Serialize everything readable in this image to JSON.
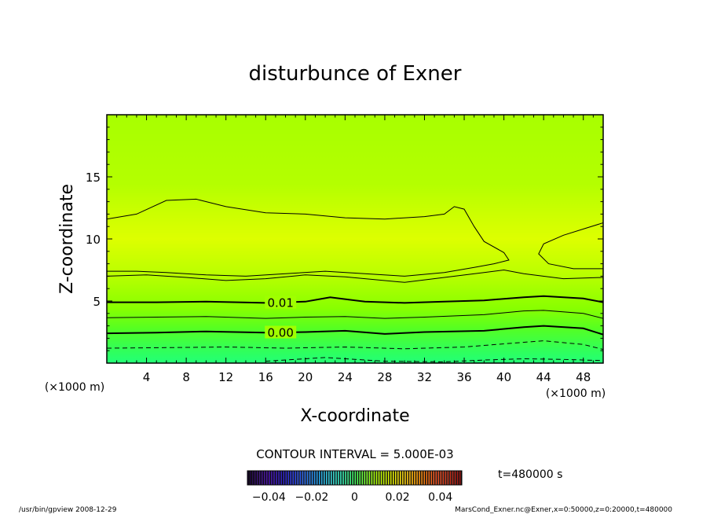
{
  "chart_data": {
    "type": "contour",
    "title": "disturbunce of Exner",
    "xlabel": "X-coordinate",
    "ylabel": "Z-coordinate",
    "x_unit": "(×1000 m)",
    "x_unit_right": "(×1000 m)",
    "y_unit": "(×1000 m)",
    "xlim": [
      0,
      50
    ],
    "ylim": [
      0,
      20
    ],
    "x_ticks": [
      4,
      8,
      12,
      16,
      20,
      24,
      28,
      32,
      36,
      40,
      44,
      48
    ],
    "y_ticks": [
      5,
      10,
      15
    ],
    "contour_interval_text": "CONTOUR INTERVAL = 5.000E-03",
    "contour_labels": [
      {
        "text": "0.01",
        "level": 0.01,
        "x": 17.5,
        "z": 4.9
      },
      {
        "text": "0.00",
        "level": 0.0,
        "x": 17.5,
        "z": 2.5
      }
    ],
    "contours": [
      {
        "level": 0.01,
        "style": "bold",
        "points": [
          [
            0,
            4.9
          ],
          [
            5,
            4.9
          ],
          [
            10,
            4.95
          ],
          [
            16,
            4.85
          ],
          [
            20,
            4.95
          ],
          [
            22.5,
            5.3
          ],
          [
            26,
            4.95
          ],
          [
            30,
            4.85
          ],
          [
            34,
            4.95
          ],
          [
            38,
            5.05
          ],
          [
            42,
            5.3
          ],
          [
            44,
            5.4
          ],
          [
            48,
            5.2
          ],
          [
            50,
            4.9
          ]
        ]
      },
      {
        "level": 0.0,
        "style": "bold",
        "points": [
          [
            0,
            2.4
          ],
          [
            5,
            2.45
          ],
          [
            10,
            2.55
          ],
          [
            16,
            2.45
          ],
          [
            20,
            2.5
          ],
          [
            24,
            2.6
          ],
          [
            28,
            2.35
          ],
          [
            32,
            2.5
          ],
          [
            38,
            2.6
          ],
          [
            42,
            2.9
          ],
          [
            44,
            3.0
          ],
          [
            48,
            2.8
          ],
          [
            50,
            2.3
          ]
        ]
      },
      {
        "level": 0.015,
        "style": "thin",
        "points": [
          [
            0,
            7.0
          ],
          [
            4,
            7.1
          ],
          [
            8,
            6.9
          ],
          [
            12,
            6.65
          ],
          [
            16,
            6.8
          ],
          [
            20,
            7.1
          ],
          [
            24,
            6.95
          ],
          [
            30,
            6.5
          ],
          [
            34,
            6.9
          ],
          [
            38,
            7.3
          ],
          [
            40,
            7.5
          ],
          [
            42,
            7.2
          ],
          [
            46,
            6.8
          ],
          [
            50,
            6.9
          ]
        ]
      },
      {
        "level": 0.005,
        "style": "thin",
        "points": [
          [
            0,
            3.65
          ],
          [
            5,
            3.7
          ],
          [
            10,
            3.75
          ],
          [
            16,
            3.6
          ],
          [
            20,
            3.7
          ],
          [
            24,
            3.75
          ],
          [
            28,
            3.6
          ],
          [
            32,
            3.7
          ],
          [
            38,
            3.9
          ],
          [
            42,
            4.2
          ],
          [
            44,
            4.25
          ],
          [
            48,
            4.0
          ],
          [
            50,
            3.6
          ]
        ]
      },
      {
        "level": -0.005,
        "style": "dashed",
        "points": [
          [
            0,
            1.2
          ],
          [
            6,
            1.25
          ],
          [
            12,
            1.3
          ],
          [
            18,
            1.2
          ],
          [
            24,
            1.3
          ],
          [
            30,
            1.15
          ],
          [
            36,
            1.3
          ],
          [
            40,
            1.55
          ],
          [
            44,
            1.8
          ],
          [
            48,
            1.5
          ],
          [
            50,
            1.1
          ]
        ]
      },
      {
        "level": -0.01,
        "style": "dashed",
        "points": [
          [
            16,
            0.15
          ],
          [
            19,
            0.3
          ],
          [
            22,
            0.45
          ],
          [
            25,
            0.3
          ],
          [
            28,
            0.15
          ],
          [
            34,
            0.1
          ],
          [
            38,
            0.25
          ],
          [
            42,
            0.35
          ],
          [
            46,
            0.3
          ],
          [
            50,
            0.2
          ]
        ]
      },
      {
        "level": 0.02,
        "style": "thin",
        "points": [
          [
            0,
            11.6
          ],
          [
            3,
            12.0
          ],
          [
            6,
            13.1
          ],
          [
            9,
            13.2
          ],
          [
            12,
            12.6
          ],
          [
            16,
            12.1
          ],
          [
            20,
            12.0
          ],
          [
            24,
            11.7
          ],
          [
            28,
            11.6
          ],
          [
            32,
            11.8
          ],
          [
            34,
            12.0
          ],
          [
            35,
            12.6
          ],
          [
            36,
            12.4
          ],
          [
            37,
            11.0
          ],
          [
            38,
            9.8
          ],
          [
            40,
            8.9
          ],
          [
            40.5,
            8.3
          ],
          [
            39,
            8.0
          ],
          [
            37,
            7.7
          ],
          [
            34,
            7.3
          ],
          [
            30,
            7.0
          ],
          [
            26,
            7.2
          ],
          [
            22,
            7.4
          ],
          [
            18,
            7.2
          ],
          [
            14,
            7.0
          ],
          [
            10,
            7.1
          ],
          [
            6,
            7.3
          ],
          [
            3,
            7.4
          ],
          [
            0,
            7.4
          ]
        ]
      },
      {
        "level": 0.02,
        "style": "thin",
        "points": [
          [
            50,
            11.3
          ],
          [
            48,
            10.8
          ],
          [
            46,
            10.3
          ],
          [
            44,
            9.6
          ],
          [
            43.5,
            8.8
          ],
          [
            44.5,
            8.0
          ],
          [
            47,
            7.6
          ],
          [
            50,
            7.6
          ]
        ]
      }
    ],
    "colorbar": {
      "min": -0.05,
      "max": 0.05,
      "tick_labels": [
        "−0.04",
        "−0.02",
        "0",
        "0.02",
        "0.04"
      ],
      "tick_values": [
        -0.04,
        -0.02,
        0,
        0.02,
        0.04
      ]
    },
    "time_label": "t=480000 s"
  },
  "footer": {
    "left": "/usr/bin/gpview   2008-12-29",
    "right": "MarsCond_Exner.nc@Exner,x=0:50000,z=0:20000,t=480000"
  },
  "colors": {
    "field_low": "#22ff77",
    "field_mid": "#99ff00",
    "field_high": "#ddff00"
  }
}
